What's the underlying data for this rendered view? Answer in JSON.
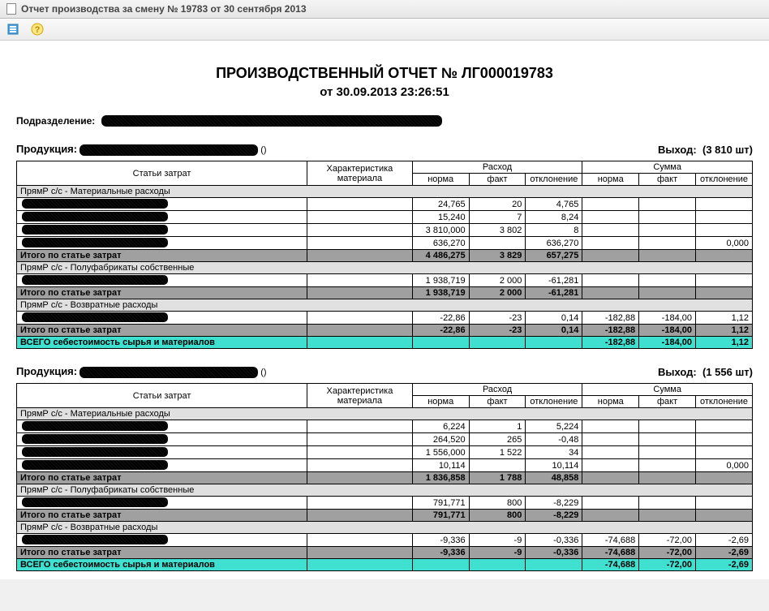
{
  "window": {
    "title": "Отчет производства за смену № 19783 от 30 сентября 2013"
  },
  "report": {
    "title": "ПРОИЗВОДСТВЕННЫЙ ОТЧЕТ № ЛГ000019783",
    "date_line": "от 30.09.2013 23:26:51",
    "subdivision_label": "Подразделение:"
  },
  "headers": {
    "cost_item": "Статьи затрат",
    "material_char": "Характеристика материала",
    "consumption": "Расход",
    "amount": "Сумма",
    "norm": "норма",
    "fact": "факт",
    "deviation": "отклонение"
  },
  "labels": {
    "product": "Продукция:",
    "yield": "Выход:",
    "section_material": "ПрямР с/с - Материальные расходы",
    "section_semi": "ПрямР с/с - Полуфабрикаты собственные",
    "section_return": "ПрямР с/с - Возвратные расходы",
    "subtotal": "Итого по статье затрат",
    "total": "ВСЕГО себестоимость сырья и материалов"
  },
  "products": [
    {
      "yield": "(3 810 шт)",
      "sections": [
        {
          "name": "section_material",
          "rows": [
            {
              "c_norm": "24,765",
              "c_fact": "20",
              "c_dev": "4,765",
              "s_norm": "",
              "s_fact": "",
              "s_dev": ""
            },
            {
              "c_norm": "15,240",
              "c_fact": "7",
              "c_dev": "8,24",
              "s_norm": "",
              "s_fact": "",
              "s_dev": ""
            },
            {
              "c_norm": "3 810,000",
              "c_fact": "3 802",
              "c_dev": "8",
              "s_norm": "",
              "s_fact": "",
              "s_dev": ""
            },
            {
              "c_norm": "636,270",
              "c_fact": "",
              "c_dev": "636,270",
              "s_norm": "",
              "s_fact": "",
              "s_dev": "0,000"
            }
          ],
          "subtotal": {
            "c_norm": "4 486,275",
            "c_fact": "3 829",
            "c_dev": "657,275",
            "s_norm": "",
            "s_fact": "",
            "s_dev": ""
          }
        },
        {
          "name": "section_semi",
          "rows": [
            {
              "c_norm": "1 938,719",
              "c_fact": "2 000",
              "c_dev": "-61,281",
              "s_norm": "",
              "s_fact": "",
              "s_dev": ""
            }
          ],
          "subtotal": {
            "c_norm": "1 938,719",
            "c_fact": "2 000",
            "c_dev": "-61,281",
            "s_norm": "",
            "s_fact": "",
            "s_dev": ""
          }
        },
        {
          "name": "section_return",
          "rows": [
            {
              "c_norm": "-22,86",
              "c_fact": "-23",
              "c_dev": "0,14",
              "s_norm": "-182,88",
              "s_fact": "-184,00",
              "s_dev": "1,12"
            }
          ],
          "subtotal": {
            "c_norm": "-22,86",
            "c_fact": "-23",
            "c_dev": "0,14",
            "s_norm": "-182,88",
            "s_fact": "-184,00",
            "s_dev": "1,12"
          }
        }
      ],
      "total": {
        "c_norm": "",
        "c_fact": "",
        "c_dev": "",
        "s_norm": "-182,88",
        "s_fact": "-184,00",
        "s_dev": "1,12"
      }
    },
    {
      "yield": "(1 556 шт)",
      "sections": [
        {
          "name": "section_material",
          "rows": [
            {
              "c_norm": "6,224",
              "c_fact": "1",
              "c_dev": "5,224",
              "s_norm": "",
              "s_fact": "",
              "s_dev": ""
            },
            {
              "c_norm": "264,520",
              "c_fact": "265",
              "c_dev": "-0,48",
              "s_norm": "",
              "s_fact": "",
              "s_dev": ""
            },
            {
              "c_norm": "1 556,000",
              "c_fact": "1 522",
              "c_dev": "34",
              "s_norm": "",
              "s_fact": "",
              "s_dev": ""
            },
            {
              "c_norm": "10,114",
              "c_fact": "",
              "c_dev": "10,114",
              "s_norm": "",
              "s_fact": "",
              "s_dev": "0,000"
            }
          ],
          "subtotal": {
            "c_norm": "1 836,858",
            "c_fact": "1 788",
            "c_dev": "48,858",
            "s_norm": "",
            "s_fact": "",
            "s_dev": ""
          }
        },
        {
          "name": "section_semi",
          "rows": [
            {
              "c_norm": "791,771",
              "c_fact": "800",
              "c_dev": "-8,229",
              "s_norm": "",
              "s_fact": "",
              "s_dev": ""
            }
          ],
          "subtotal": {
            "c_norm": "791,771",
            "c_fact": "800",
            "c_dev": "-8,229",
            "s_norm": "",
            "s_fact": "",
            "s_dev": ""
          }
        },
        {
          "name": "section_return",
          "rows": [
            {
              "c_norm": "-9,336",
              "c_fact": "-9",
              "c_dev": "-0,336",
              "s_norm": "-74,688",
              "s_fact": "-72,00",
              "s_dev": "-2,69"
            }
          ],
          "subtotal": {
            "c_norm": "-9,336",
            "c_fact": "-9",
            "c_dev": "-0,336",
            "s_norm": "-74,688",
            "s_fact": "-72,00",
            "s_dev": "-2,69"
          }
        }
      ],
      "total": {
        "c_norm": "",
        "c_fact": "",
        "c_dev": "",
        "s_norm": "-74,688",
        "s_fact": "-72,00",
        "s_dev": "-2,69"
      }
    }
  ]
}
